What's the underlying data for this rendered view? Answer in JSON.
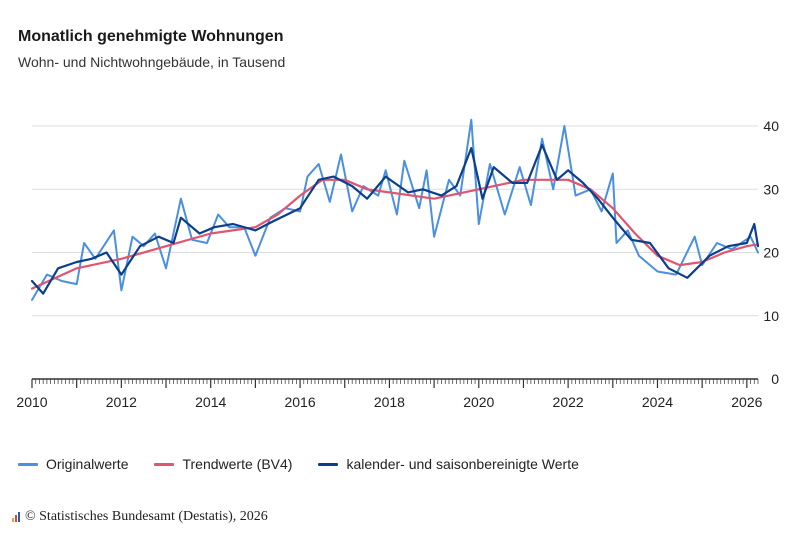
{
  "title": "Monatlich genehmigte Wohnungen",
  "subtitle": "Wohn- und Nichtwohngebäude, in Tausend",
  "source": "© Statistisches Bundesamt (Destatis), 2026",
  "colors": {
    "original": "#4a90e2",
    "trend": "#e05570",
    "seasonal": "#0b3f8c",
    "grid": "#dddddd",
    "axis": "#333333"
  },
  "chart_data": {
    "type": "line",
    "ylim": [
      0,
      40
    ],
    "yticks": [
      0,
      10,
      20,
      30,
      40
    ],
    "xlim": [
      "2010-01",
      "2026-04"
    ],
    "xticks": [
      "2010",
      "2012",
      "2014",
      "2016",
      "2018",
      "2020",
      "2022",
      "2024",
      "2026"
    ],
    "grid": true,
    "legend_position": "bottom",
    "series": [
      {
        "name": "Originalwerte",
        "color": "#4a90e2",
        "points": [
          [
            "2010-01",
            12.5
          ],
          [
            "2010-05",
            16.5
          ],
          [
            "2010-09",
            15.5
          ],
          [
            "2011-01",
            15.0
          ],
          [
            "2011-03",
            21.5
          ],
          [
            "2011-06",
            19.0
          ],
          [
            "2011-11",
            23.5
          ],
          [
            "2012-01",
            14.0
          ],
          [
            "2012-04",
            22.5
          ],
          [
            "2012-07",
            21.0
          ],
          [
            "2012-10",
            23.0
          ],
          [
            "2013-01",
            17.5
          ],
          [
            "2013-05",
            28.5
          ],
          [
            "2013-08",
            22.0
          ],
          [
            "2013-12",
            21.5
          ],
          [
            "2014-03",
            26.0
          ],
          [
            "2014-06",
            24.0
          ],
          [
            "2014-10",
            24.0
          ],
          [
            "2015-01",
            19.5
          ],
          [
            "2015-05",
            25.5
          ],
          [
            "2015-09",
            27.0
          ],
          [
            "2016-01",
            26.5
          ],
          [
            "2016-03",
            32.0
          ],
          [
            "2016-06",
            34.0
          ],
          [
            "2016-09",
            28.0
          ],
          [
            "2016-12",
            35.5
          ],
          [
            "2017-03",
            26.5
          ],
          [
            "2017-06",
            30.5
          ],
          [
            "2017-10",
            29.0
          ],
          [
            "2017-12",
            33.0
          ],
          [
            "2018-03",
            26.0
          ],
          [
            "2018-05",
            34.5
          ],
          [
            "2018-09",
            27.0
          ],
          [
            "2018-11",
            33.0
          ],
          [
            "2019-01",
            22.5
          ],
          [
            "2019-05",
            31.5
          ],
          [
            "2019-08",
            29.0
          ],
          [
            "2019-11",
            41.0
          ],
          [
            "2020-01",
            24.5
          ],
          [
            "2020-04",
            34.0
          ],
          [
            "2020-08",
            26.0
          ],
          [
            "2020-12",
            33.5
          ],
          [
            "2021-03",
            27.5
          ],
          [
            "2021-06",
            38.0
          ],
          [
            "2021-09",
            30.0
          ],
          [
            "2021-12",
            40.0
          ],
          [
            "2022-03",
            29.0
          ],
          [
            "2022-07",
            30.0
          ],
          [
            "2022-10",
            26.5
          ],
          [
            "2023-01",
            32.5
          ],
          [
            "2023-02",
            21.5
          ],
          [
            "2023-05",
            23.5
          ],
          [
            "2023-08",
            19.5
          ],
          [
            "2024-01",
            17.0
          ],
          [
            "2024-06",
            16.5
          ],
          [
            "2024-11",
            22.5
          ],
          [
            "2025-01",
            18.0
          ],
          [
            "2025-05",
            21.5
          ],
          [
            "2025-09",
            20.5
          ],
          [
            "2026-02",
            22.5
          ],
          [
            "2026-04",
            20.0
          ]
        ]
      },
      {
        "name": "Trendwerte (BV4)",
        "color": "#e05570",
        "points": [
          [
            "2010-01",
            14.3
          ],
          [
            "2011-01",
            17.5
          ],
          [
            "2012-01",
            19.0
          ],
          [
            "2013-01",
            21.0
          ],
          [
            "2014-01",
            23.0
          ],
          [
            "2015-01",
            24.0
          ],
          [
            "2015-07",
            26.0
          ],
          [
            "2016-01",
            29.0
          ],
          [
            "2016-07",
            31.5
          ],
          [
            "2017-01",
            31.5
          ],
          [
            "2017-07",
            30.0
          ],
          [
            "2018-01",
            29.5
          ],
          [
            "2019-01",
            28.5
          ],
          [
            "2020-01",
            30.0
          ],
          [
            "2021-01",
            31.5
          ],
          [
            "2022-01",
            31.5
          ],
          [
            "2022-07",
            30.0
          ],
          [
            "2023-01",
            27.0
          ],
          [
            "2023-07",
            23.0
          ],
          [
            "2024-01",
            19.5
          ],
          [
            "2024-07",
            18.0
          ],
          [
            "2025-01",
            18.5
          ],
          [
            "2025-07",
            20.0
          ],
          [
            "2026-01",
            21.0
          ],
          [
            "2026-04",
            21.3
          ]
        ]
      },
      {
        "name": "kalender- und saisonbereinigte Werte",
        "color": "#0b3f8c",
        "points": [
          [
            "2010-01",
            15.5
          ],
          [
            "2010-04",
            13.5
          ],
          [
            "2010-08",
            17.5
          ],
          [
            "2011-01",
            18.5
          ],
          [
            "2011-05",
            19.0
          ],
          [
            "2011-09",
            20.0
          ],
          [
            "2012-01",
            16.5
          ],
          [
            "2012-06",
            21.0
          ],
          [
            "2012-11",
            22.5
          ],
          [
            "2013-03",
            21.5
          ],
          [
            "2013-05",
            25.5
          ],
          [
            "2013-10",
            23.0
          ],
          [
            "2014-02",
            24.0
          ],
          [
            "2014-07",
            24.5
          ],
          [
            "2015-01",
            23.5
          ],
          [
            "2015-06",
            25.0
          ],
          [
            "2016-01",
            27.0
          ],
          [
            "2016-06",
            31.5
          ],
          [
            "2016-10",
            32.0
          ],
          [
            "2017-03",
            30.5
          ],
          [
            "2017-07",
            28.5
          ],
          [
            "2017-12",
            32.0
          ],
          [
            "2018-06",
            29.5
          ],
          [
            "2018-10",
            30.0
          ],
          [
            "2019-03",
            29.0
          ],
          [
            "2019-07",
            30.5
          ],
          [
            "2019-11",
            36.5
          ],
          [
            "2020-02",
            28.5
          ],
          [
            "2020-05",
            33.5
          ],
          [
            "2020-10",
            31.0
          ],
          [
            "2021-02",
            31.0
          ],
          [
            "2021-06",
            37.0
          ],
          [
            "2021-10",
            31.5
          ],
          [
            "2022-01",
            33.0
          ],
          [
            "2022-05",
            31.0
          ],
          [
            "2022-09",
            28.5
          ],
          [
            "2023-01",
            25.5
          ],
          [
            "2023-06",
            22.0
          ],
          [
            "2023-11",
            21.5
          ],
          [
            "2024-04",
            17.5
          ],
          [
            "2024-09",
            16.0
          ],
          [
            "2025-03",
            19.5
          ],
          [
            "2025-08",
            21.0
          ],
          [
            "2026-01",
            21.5
          ],
          [
            "2026-03",
            24.5
          ],
          [
            "2026-04",
            21.0
          ]
        ]
      }
    ]
  }
}
